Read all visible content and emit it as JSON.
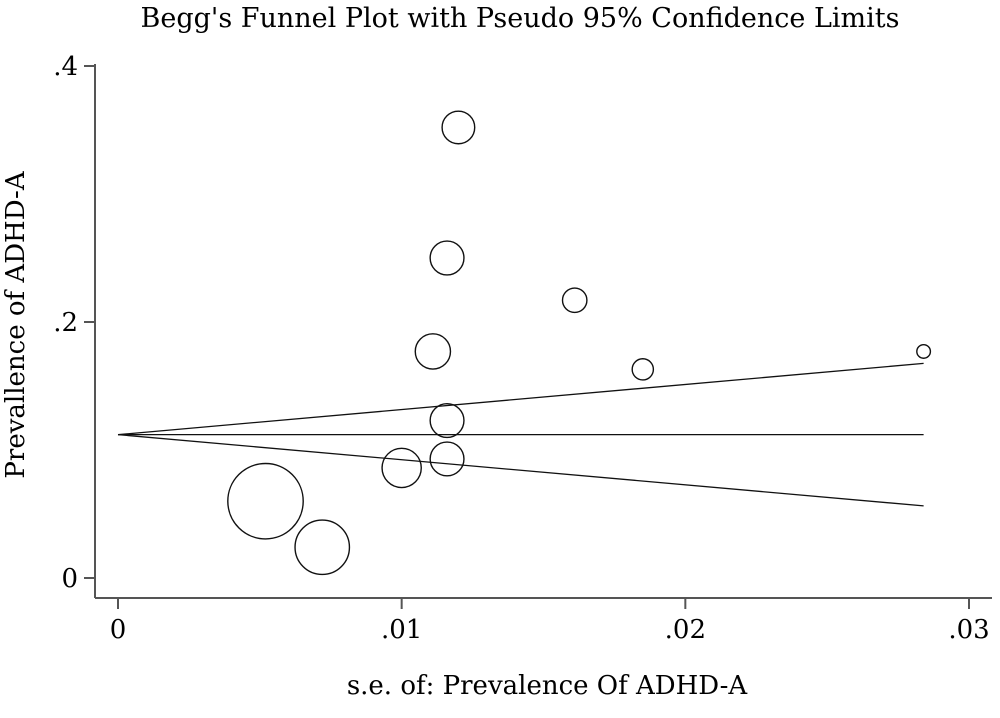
{
  "chart_data": {
    "type": "scatter",
    "title": "Begg's Funnel Plot with Pseudo 95% Confidence Limits",
    "xlabel": "s.e. of: Prevalence Of ADHD-A",
    "ylabel": "Prevallence of ADHD-A",
    "xlim": [
      0,
      0.03
    ],
    "ylim": [
      0,
      0.4
    ],
    "x_ticks": [
      {
        "value": 0,
        "label": "0"
      },
      {
        "value": 0.01,
        "label": ".01"
      },
      {
        "value": 0.02,
        "label": ".02"
      },
      {
        "value": 0.03,
        "label": ".03"
      }
    ],
    "y_ticks": [
      {
        "value": 0,
        "label": "0"
      },
      {
        "value": 0.2,
        "label": ".2"
      },
      {
        "value": 0.4,
        "label": ".4"
      }
    ],
    "pooled_estimate": 0.112,
    "funnel_se_max": 0.0284,
    "points": [
      {
        "x": 0.0052,
        "y": 0.06,
        "weight": 37
      },
      {
        "x": 0.0072,
        "y": 0.024,
        "weight": 19.3
      },
      {
        "x": 0.01,
        "y": 0.086,
        "weight": 10
      },
      {
        "x": 0.0111,
        "y": 0.177,
        "weight": 8.1
      },
      {
        "x": 0.0116,
        "y": 0.25,
        "weight": 7.4
      },
      {
        "x": 0.0116,
        "y": 0.123,
        "weight": 7.4
      },
      {
        "x": 0.0116,
        "y": 0.093,
        "weight": 7.4
      },
      {
        "x": 0.012,
        "y": 0.352,
        "weight": 6.9
      },
      {
        "x": 0.0161,
        "y": 0.217,
        "weight": 3.9
      },
      {
        "x": 0.0185,
        "y": 0.163,
        "weight": 2.9
      },
      {
        "x": 0.0284,
        "y": 0.177,
        "weight": 1.2
      }
    ]
  }
}
